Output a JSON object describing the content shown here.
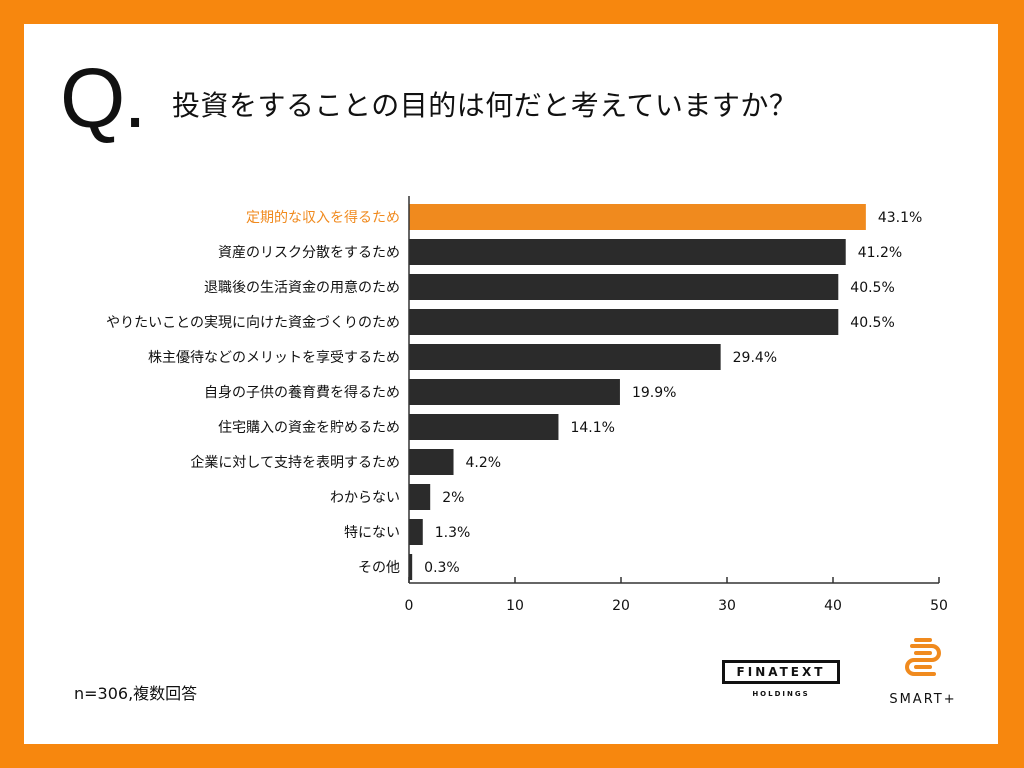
{
  "question_mark": "Q.",
  "question": "投資をすることの目的は何だと考えていますか？",
  "note": "n=306,複数回答",
  "logos": {
    "finatext": "FINATEXT",
    "finatext_sub": "HOLDINGS",
    "smart": "SMART+"
  },
  "colors": {
    "highlight": "#F08A1E",
    "bar": "#2B2B2B",
    "highlight_label": "#F08A1E",
    "frame": "#F7870E"
  },
  "chart_data": {
    "type": "bar",
    "orientation": "horizontal",
    "categories": [
      "定期的な収入を得るため",
      "資産のリスク分散をするため",
      "退職後の生活資金の用意のため",
      "やりたいことの実現に向けた資金づくりのため",
      "株主優待などのメリットを享受するため",
      "自身の子供の養育費を得るため",
      "住宅購入の資金を貯めるため",
      "企業に対して支持を表明するため",
      "わからない",
      "特にない",
      "その他"
    ],
    "values": [
      43.1,
      41.2,
      40.5,
      40.5,
      29.4,
      19.9,
      14.1,
      4.2,
      2,
      1.3,
      0.3
    ],
    "value_labels": [
      "43.1%",
      "41.2%",
      "40.5%",
      "40.5%",
      "29.4%",
      "19.9%",
      "14.1%",
      "4.2%",
      "2%",
      "1.3%",
      "0.3%"
    ],
    "highlight_index": 0,
    "xlim": [
      0,
      50
    ],
    "xticks": [
      0,
      10,
      20,
      30,
      40,
      50
    ],
    "xlabel": "",
    "ylabel": "",
    "grid": false,
    "legend": "none"
  }
}
